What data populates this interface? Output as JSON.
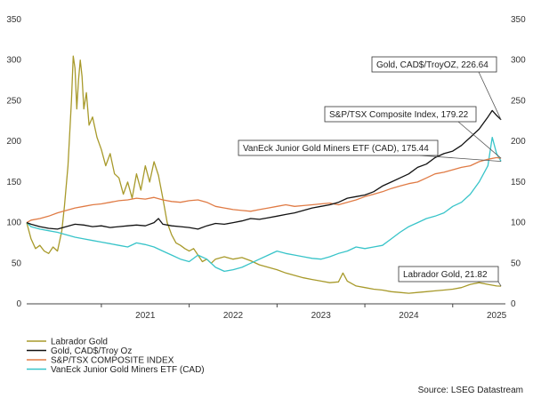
{
  "chart_data": {
    "type": "line",
    "y_left_ticks": [
      0,
      50,
      100,
      150,
      200,
      250,
      300,
      350
    ],
    "y_right_ticks": [
      0,
      50,
      100,
      150,
      200,
      250,
      300,
      350
    ],
    "ylim": [
      0,
      350
    ],
    "x_ticks": [
      "2021",
      "2022",
      "2023",
      "2024",
      "2025"
    ],
    "xlim": [
      2020.15,
      2025.6
    ],
    "grid": false,
    "legend_position": "bottom-left",
    "series": [
      {
        "name": "Labrador Gold",
        "color": "#a89a2b",
        "points": [
          [
            2020.15,
            100
          ],
          [
            2020.2,
            80
          ],
          [
            2020.25,
            68
          ],
          [
            2020.3,
            72
          ],
          [
            2020.35,
            65
          ],
          [
            2020.4,
            62
          ],
          [
            2020.45,
            70
          ],
          [
            2020.5,
            65
          ],
          [
            2020.55,
            90
          ],
          [
            2020.58,
            120
          ],
          [
            2020.62,
            170
          ],
          [
            2020.66,
            250
          ],
          [
            2020.68,
            305
          ],
          [
            2020.7,
            290
          ],
          [
            2020.72,
            240
          ],
          [
            2020.74,
            275
          ],
          [
            2020.76,
            300
          ],
          [
            2020.78,
            280
          ],
          [
            2020.8,
            240
          ],
          [
            2020.83,
            260
          ],
          [
            2020.86,
            220
          ],
          [
            2020.9,
            230
          ],
          [
            2020.95,
            205
          ],
          [
            2021.0,
            190
          ],
          [
            2021.05,
            170
          ],
          [
            2021.1,
            185
          ],
          [
            2021.15,
            160
          ],
          [
            2021.2,
            155
          ],
          [
            2021.25,
            135
          ],
          [
            2021.3,
            150
          ],
          [
            2021.35,
            130
          ],
          [
            2021.4,
            160
          ],
          [
            2021.45,
            140
          ],
          [
            2021.5,
            170
          ],
          [
            2021.55,
            150
          ],
          [
            2021.6,
            175
          ],
          [
            2021.65,
            158
          ],
          [
            2021.7,
            130
          ],
          [
            2021.75,
            100
          ],
          [
            2021.8,
            85
          ],
          [
            2021.85,
            75
          ],
          [
            2021.9,
            72
          ],
          [
            2021.95,
            68
          ],
          [
            2022.0,
            65
          ],
          [
            2022.05,
            68
          ],
          [
            2022.1,
            60
          ],
          [
            2022.15,
            52
          ],
          [
            2022.2,
            55
          ],
          [
            2022.25,
            50
          ],
          [
            2022.3,
            55
          ],
          [
            2022.4,
            58
          ],
          [
            2022.5,
            55
          ],
          [
            2022.6,
            57
          ],
          [
            2022.7,
            53
          ],
          [
            2022.8,
            48
          ],
          [
            2022.9,
            45
          ],
          [
            2023.0,
            42
          ],
          [
            2023.1,
            38
          ],
          [
            2023.2,
            35
          ],
          [
            2023.3,
            32
          ],
          [
            2023.4,
            30
          ],
          [
            2023.5,
            28
          ],
          [
            2023.6,
            26
          ],
          [
            2023.7,
            27
          ],
          [
            2023.75,
            38
          ],
          [
            2023.8,
            28
          ],
          [
            2023.9,
            22
          ],
          [
            2024.0,
            20
          ],
          [
            2024.1,
            18
          ],
          [
            2024.2,
            17
          ],
          [
            2024.3,
            15
          ],
          [
            2024.4,
            14
          ],
          [
            2024.5,
            13
          ],
          [
            2024.6,
            14
          ],
          [
            2024.7,
            15
          ],
          [
            2024.8,
            16
          ],
          [
            2024.9,
            17
          ],
          [
            2025.0,
            18
          ],
          [
            2025.1,
            20
          ],
          [
            2025.2,
            24
          ],
          [
            2025.3,
            26
          ],
          [
            2025.4,
            24
          ],
          [
            2025.5,
            22
          ],
          [
            2025.55,
            21.82
          ]
        ]
      },
      {
        "name": "Gold, CAD$/Troy Oz",
        "color": "#111111",
        "points": [
          [
            2020.15,
            100
          ],
          [
            2020.2,
            98
          ],
          [
            2020.3,
            95
          ],
          [
            2020.4,
            93
          ],
          [
            2020.5,
            92
          ],
          [
            2020.6,
            95
          ],
          [
            2020.7,
            98
          ],
          [
            2020.8,
            97
          ],
          [
            2020.9,
            95
          ],
          [
            2021.0,
            96
          ],
          [
            2021.1,
            94
          ],
          [
            2021.2,
            95
          ],
          [
            2021.3,
            96
          ],
          [
            2021.4,
            97
          ],
          [
            2021.5,
            96
          ],
          [
            2021.6,
            100
          ],
          [
            2021.65,
            105
          ],
          [
            2021.7,
            98
          ],
          [
            2021.8,
            96
          ],
          [
            2021.9,
            95
          ],
          [
            2022.0,
            94
          ],
          [
            2022.1,
            92
          ],
          [
            2022.2,
            96
          ],
          [
            2022.3,
            99
          ],
          [
            2022.4,
            98
          ],
          [
            2022.5,
            100
          ],
          [
            2022.6,
            102
          ],
          [
            2022.7,
            105
          ],
          [
            2022.8,
            104
          ],
          [
            2022.9,
            106
          ],
          [
            2023.0,
            108
          ],
          [
            2023.1,
            110
          ],
          [
            2023.2,
            112
          ],
          [
            2023.3,
            115
          ],
          [
            2023.4,
            118
          ],
          [
            2023.5,
            120
          ],
          [
            2023.6,
            122
          ],
          [
            2023.7,
            125
          ],
          [
            2023.8,
            130
          ],
          [
            2023.9,
            132
          ],
          [
            2024.0,
            134
          ],
          [
            2024.1,
            138
          ],
          [
            2024.2,
            145
          ],
          [
            2024.3,
            150
          ],
          [
            2024.4,
            155
          ],
          [
            2024.5,
            160
          ],
          [
            2024.6,
            168
          ],
          [
            2024.7,
            172
          ],
          [
            2024.8,
            180
          ],
          [
            2024.9,
            185
          ],
          [
            2025.0,
            188
          ],
          [
            2025.1,
            195
          ],
          [
            2025.2,
            205
          ],
          [
            2025.3,
            215
          ],
          [
            2025.4,
            230
          ],
          [
            2025.45,
            238
          ],
          [
            2025.5,
            232
          ],
          [
            2025.55,
            226.64
          ]
        ]
      },
      {
        "name": "S&P/TSX COMPOSITE INDEX",
        "color": "#e07b45",
        "points": [
          [
            2020.15,
            100
          ],
          [
            2020.2,
            103
          ],
          [
            2020.3,
            105
          ],
          [
            2020.4,
            108
          ],
          [
            2020.5,
            112
          ],
          [
            2020.6,
            115
          ],
          [
            2020.7,
            118
          ],
          [
            2020.8,
            120
          ],
          [
            2020.9,
            122
          ],
          [
            2021.0,
            123
          ],
          [
            2021.1,
            125
          ],
          [
            2021.2,
            127
          ],
          [
            2021.3,
            128
          ],
          [
            2021.4,
            130
          ],
          [
            2021.5,
            129
          ],
          [
            2021.6,
            131
          ],
          [
            2021.7,
            128
          ],
          [
            2021.8,
            126
          ],
          [
            2021.9,
            125
          ],
          [
            2022.0,
            127
          ],
          [
            2022.1,
            128
          ],
          [
            2022.2,
            125
          ],
          [
            2022.3,
            120
          ],
          [
            2022.4,
            118
          ],
          [
            2022.5,
            116
          ],
          [
            2022.6,
            115
          ],
          [
            2022.7,
            114
          ],
          [
            2022.8,
            116
          ],
          [
            2022.9,
            118
          ],
          [
            2023.0,
            120
          ],
          [
            2023.1,
            122
          ],
          [
            2023.2,
            120
          ],
          [
            2023.3,
            121
          ],
          [
            2023.4,
            122
          ],
          [
            2023.5,
            123
          ],
          [
            2023.6,
            124
          ],
          [
            2023.7,
            122
          ],
          [
            2023.8,
            125
          ],
          [
            2023.9,
            128
          ],
          [
            2024.0,
            132
          ],
          [
            2024.1,
            135
          ],
          [
            2024.2,
            138
          ],
          [
            2024.3,
            142
          ],
          [
            2024.4,
            145
          ],
          [
            2024.5,
            148
          ],
          [
            2024.6,
            150
          ],
          [
            2024.7,
            155
          ],
          [
            2024.8,
            160
          ],
          [
            2024.9,
            162
          ],
          [
            2025.0,
            165
          ],
          [
            2025.1,
            168
          ],
          [
            2025.2,
            170
          ],
          [
            2025.3,
            175
          ],
          [
            2025.4,
            178
          ],
          [
            2025.5,
            180
          ],
          [
            2025.55,
            179.22
          ]
        ]
      },
      {
        "name": "VanEck Junior Gold Miners ETF (CAD)",
        "color": "#38c4c9",
        "points": [
          [
            2020.15,
            100
          ],
          [
            2020.2,
            95
          ],
          [
            2020.3,
            92
          ],
          [
            2020.4,
            90
          ],
          [
            2020.5,
            88
          ],
          [
            2020.6,
            85
          ],
          [
            2020.7,
            82
          ],
          [
            2020.8,
            80
          ],
          [
            2020.9,
            78
          ],
          [
            2021.0,
            76
          ],
          [
            2021.1,
            74
          ],
          [
            2021.2,
            72
          ],
          [
            2021.3,
            70
          ],
          [
            2021.4,
            75
          ],
          [
            2021.5,
            73
          ],
          [
            2021.6,
            70
          ],
          [
            2021.7,
            65
          ],
          [
            2021.8,
            60
          ],
          [
            2021.9,
            55
          ],
          [
            2022.0,
            52
          ],
          [
            2022.1,
            60
          ],
          [
            2022.2,
            55
          ],
          [
            2022.3,
            45
          ],
          [
            2022.4,
            40
          ],
          [
            2022.5,
            42
          ],
          [
            2022.6,
            45
          ],
          [
            2022.7,
            50
          ],
          [
            2022.8,
            55
          ],
          [
            2022.9,
            60
          ],
          [
            2023.0,
            65
          ],
          [
            2023.1,
            62
          ],
          [
            2023.2,
            60
          ],
          [
            2023.3,
            58
          ],
          [
            2023.4,
            56
          ],
          [
            2023.5,
            55
          ],
          [
            2023.6,
            58
          ],
          [
            2023.7,
            62
          ],
          [
            2023.8,
            65
          ],
          [
            2023.9,
            70
          ],
          [
            2024.0,
            68
          ],
          [
            2024.1,
            70
          ],
          [
            2024.2,
            72
          ],
          [
            2024.3,
            80
          ],
          [
            2024.4,
            88
          ],
          [
            2024.5,
            95
          ],
          [
            2024.6,
            100
          ],
          [
            2024.7,
            105
          ],
          [
            2024.8,
            108
          ],
          [
            2024.9,
            112
          ],
          [
            2025.0,
            120
          ],
          [
            2025.1,
            125
          ],
          [
            2025.2,
            135
          ],
          [
            2025.3,
            150
          ],
          [
            2025.4,
            170
          ],
          [
            2025.45,
            205
          ],
          [
            2025.5,
            185
          ],
          [
            2025.55,
            175.44
          ]
        ]
      }
    ],
    "annotations": [
      {
        "text": "Gold, CAD$/TroyOZ, 226.64",
        "x": 2025.55,
        "y": 226.64
      },
      {
        "text": "S&P/TSX Composite Index, 179.22",
        "x": 2025.55,
        "y": 179.22
      },
      {
        "text": "VanEck Junior Gold Miners ETF (CAD), 175.44",
        "x": 2025.55,
        "y": 175.44
      },
      {
        "text": "Labrador Gold, 21.82",
        "x": 2025.55,
        "y": 21.82
      }
    ]
  },
  "legend": [
    {
      "label": "Labrador Gold",
      "color": "#a89a2b"
    },
    {
      "label": "Gold, CAD$/Troy Oz",
      "color": "#111111"
    },
    {
      "label": "S&P/TSX COMPOSITE INDEX",
      "color": "#e07b45"
    },
    {
      "label": "VanEck Junior Gold Miners ETF (CAD)",
      "color": "#38c4c9"
    }
  ],
  "source": "Source: LSEG Datastream"
}
